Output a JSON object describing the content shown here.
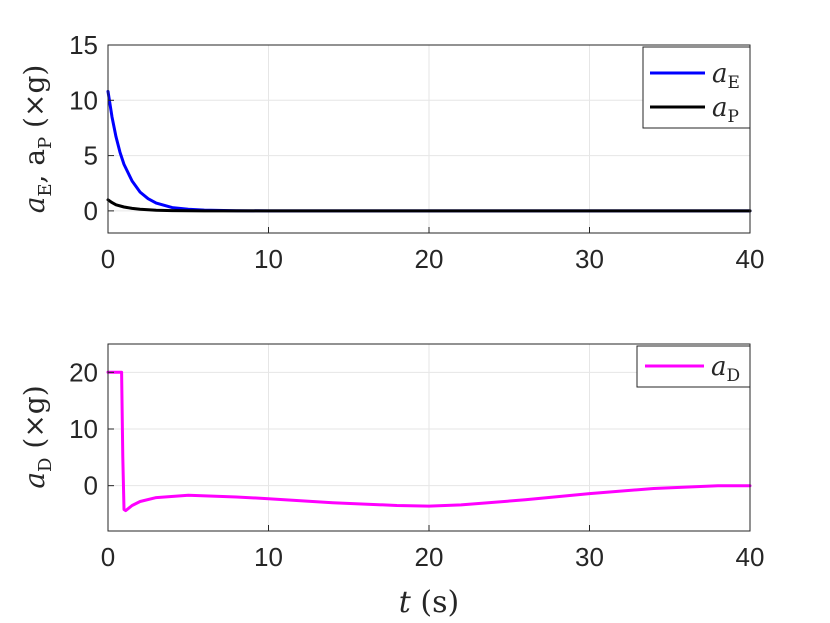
{
  "chart_data": [
    {
      "type": "line",
      "ylabel": {
        "pre": "a",
        "sub1": "E",
        "mid": ", a",
        "sub2": "P",
        "post": " (×g)"
      },
      "xlim": [
        0,
        40
      ],
      "ylim": [
        -2,
        15
      ],
      "xticks": [
        "0",
        "10",
        "20",
        "30",
        "40"
      ],
      "yticks": [
        "0",
        "5",
        "10",
        "15"
      ],
      "xtick_values": [
        0,
        10,
        20,
        30,
        40
      ],
      "ytick_values": [
        0,
        5,
        10,
        15
      ],
      "grid": true,
      "legend_position": "top-right",
      "series": [
        {
          "name": "a_E",
          "legend_main": "a",
          "legend_sub": "E",
          "color": "#0000ff",
          "x": [
            0,
            0.25,
            0.5,
            0.75,
            1,
            1.5,
            2,
            2.5,
            3,
            4,
            5,
            6,
            8,
            10,
            15,
            20,
            25,
            30,
            35,
            40
          ],
          "y": [
            10.8,
            8.5,
            6.7,
            5.3,
            4.2,
            2.7,
            1.7,
            1.1,
            0.7,
            0.3,
            0.15,
            0.07,
            0.02,
            0.0,
            0.0,
            0.0,
            0.0,
            0.0,
            0.0,
            0.0
          ]
        },
        {
          "name": "a_P",
          "legend_main": "a",
          "legend_sub": "P",
          "color": "#000000",
          "x": [
            0,
            0.25,
            0.5,
            1,
            1.5,
            2,
            3,
            4,
            6,
            10,
            20,
            30,
            40
          ],
          "y": [
            1.0,
            0.75,
            0.55,
            0.35,
            0.22,
            0.14,
            0.06,
            0.03,
            0.0,
            0.0,
            0.0,
            0.0,
            0.0
          ]
        }
      ]
    },
    {
      "type": "line",
      "ylabel": {
        "pre": "a",
        "sub1": "D",
        "post": " (×g)"
      },
      "xlabel": {
        "main": "t",
        "post": " (s)"
      },
      "xlim": [
        0,
        40
      ],
      "ylim": [
        -8,
        25
      ],
      "xticks": [
        "0",
        "10",
        "20",
        "30",
        "40"
      ],
      "yticks": [
        "0",
        "10",
        "20"
      ],
      "xtick_values": [
        0,
        10,
        20,
        30,
        40
      ],
      "ytick_values": [
        0,
        10,
        20
      ],
      "grid": true,
      "legend_position": "top-right",
      "series": [
        {
          "name": "a_D",
          "legend_main": "a",
          "legend_sub": "D",
          "color": "#ff00ff",
          "x": [
            0,
            0.85,
            0.92,
            1.0,
            1.1,
            1.5,
            2,
            3,
            5,
            8,
            10,
            14,
            18,
            20,
            22,
            26,
            30,
            34,
            38,
            40
          ],
          "y": [
            20,
            20,
            5,
            -4.2,
            -4.4,
            -3.5,
            -2.8,
            -2.1,
            -1.7,
            -2.0,
            -2.3,
            -3.0,
            -3.5,
            -3.6,
            -3.4,
            -2.5,
            -1.4,
            -0.5,
            0.0,
            0.0
          ]
        }
      ]
    }
  ]
}
